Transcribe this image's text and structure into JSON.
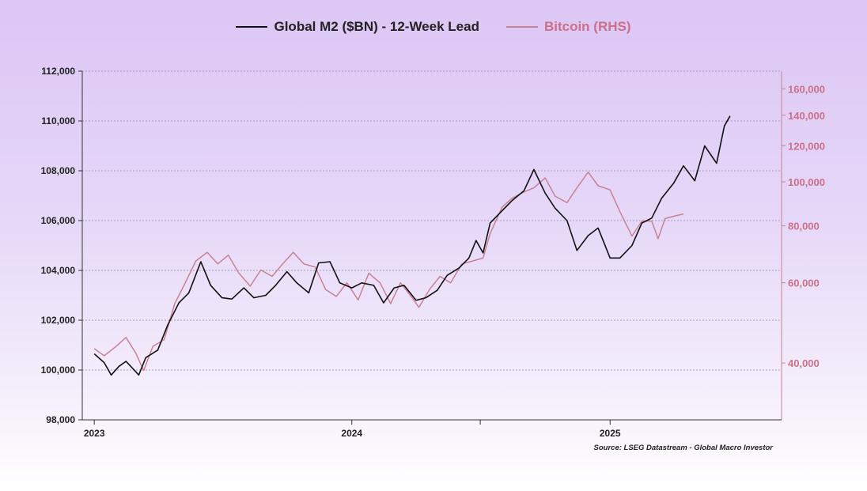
{
  "chart_data": {
    "type": "line",
    "title": "",
    "legend_placement": "top-center",
    "grid": true,
    "series": [
      {
        "name": "Global M2 ($BN) - 12-Week Lead",
        "axis": "left",
        "color": "#111111",
        "points": [
          [
            "2023-01-01",
            100650
          ],
          [
            "2023-01-15",
            100300
          ],
          [
            "2023-01-25",
            99800
          ],
          [
            "2023-02-05",
            100150
          ],
          [
            "2023-02-15",
            100350
          ],
          [
            "2023-02-25",
            100050
          ],
          [
            "2023-03-05",
            99800
          ],
          [
            "2023-03-15",
            100500
          ],
          [
            "2023-04-01",
            100800
          ],
          [
            "2023-04-15",
            101800
          ],
          [
            "2023-05-01",
            102700
          ],
          [
            "2023-05-15",
            103100
          ],
          [
            "2023-06-01",
            104350
          ],
          [
            "2023-06-15",
            103400
          ],
          [
            "2023-07-01",
            102900
          ],
          [
            "2023-07-15",
            102850
          ],
          [
            "2023-08-01",
            103300
          ],
          [
            "2023-08-15",
            102900
          ],
          [
            "2023-09-01",
            103000
          ],
          [
            "2023-09-15",
            103400
          ],
          [
            "2023-10-01",
            103950
          ],
          [
            "2023-10-15",
            103500
          ],
          [
            "2023-11-01",
            103100
          ],
          [
            "2023-11-15",
            104300
          ],
          [
            "2023-12-01",
            104350
          ],
          [
            "2023-12-15",
            103500
          ],
          [
            "2024-01-01",
            103300
          ],
          [
            "2024-01-15",
            103500
          ],
          [
            "2024-02-01",
            103400
          ],
          [
            "2024-02-15",
            102700
          ],
          [
            "2024-03-01",
            103300
          ],
          [
            "2024-03-15",
            103400
          ],
          [
            "2024-04-01",
            102800
          ],
          [
            "2024-04-15",
            102900
          ],
          [
            "2024-05-01",
            103200
          ],
          [
            "2024-05-15",
            103800
          ],
          [
            "2024-06-01",
            104100
          ],
          [
            "2024-06-15",
            104500
          ],
          [
            "2024-06-25",
            105200
          ],
          [
            "2024-07-05",
            104700
          ],
          [
            "2024-07-15",
            105900
          ],
          [
            "2024-08-01",
            106400
          ],
          [
            "2024-08-15",
            106800
          ],
          [
            "2024-09-01",
            107200
          ],
          [
            "2024-09-15",
            108050
          ],
          [
            "2024-10-01",
            107100
          ],
          [
            "2024-10-15",
            106500
          ],
          [
            "2024-11-01",
            106000
          ],
          [
            "2024-11-15",
            104800
          ],
          [
            "2024-12-01",
            105400
          ],
          [
            "2024-12-15",
            105700
          ],
          [
            "2025-01-01",
            104500
          ],
          [
            "2025-01-15",
            104500
          ],
          [
            "2025-02-01",
            105000
          ],
          [
            "2025-02-15",
            105900
          ],
          [
            "2025-03-01",
            106100
          ],
          [
            "2025-03-15",
            106900
          ],
          [
            "2025-04-01",
            107500
          ],
          [
            "2025-04-15",
            108200
          ],
          [
            "2025-05-01",
            107600
          ],
          [
            "2025-05-15",
            109000
          ],
          [
            "2025-06-01",
            108300
          ],
          [
            "2025-06-12",
            109800
          ],
          [
            "2025-06-20",
            110200
          ]
        ]
      },
      {
        "name": "Bitcoin (RHS)",
        "axis": "right",
        "color": "#c98194",
        "points": [
          [
            "2023-01-01",
            43000
          ],
          [
            "2023-01-15",
            41500
          ],
          [
            "2023-02-01",
            43500
          ],
          [
            "2023-02-15",
            45500
          ],
          [
            "2023-03-01",
            42000
          ],
          [
            "2023-03-12",
            38500
          ],
          [
            "2023-03-25",
            43500
          ],
          [
            "2023-04-10",
            45000
          ],
          [
            "2023-04-25",
            54000
          ],
          [
            "2023-05-10",
            60000
          ],
          [
            "2023-05-25",
            67000
          ],
          [
            "2023-06-10",
            70000
          ],
          [
            "2023-06-25",
            66000
          ],
          [
            "2023-07-10",
            69000
          ],
          [
            "2023-07-25",
            63000
          ],
          [
            "2023-08-10",
            59000
          ],
          [
            "2023-08-25",
            64000
          ],
          [
            "2023-09-10",
            62000
          ],
          [
            "2023-09-25",
            66000
          ],
          [
            "2023-10-10",
            70000
          ],
          [
            "2023-10-25",
            66000
          ],
          [
            "2023-11-10",
            65000
          ],
          [
            "2023-11-25",
            58000
          ],
          [
            "2023-12-10",
            56000
          ],
          [
            "2023-12-25",
            60000
          ],
          [
            "2024-01-10",
            55000
          ],
          [
            "2024-01-25",
            63000
          ],
          [
            "2024-02-10",
            60000
          ],
          [
            "2024-02-25",
            54000
          ],
          [
            "2024-03-10",
            60000
          ],
          [
            "2024-03-25",
            56000
          ],
          [
            "2024-04-05",
            53000
          ],
          [
            "2024-04-20",
            58000
          ],
          [
            "2024-05-05",
            62000
          ],
          [
            "2024-05-20",
            60000
          ],
          [
            "2024-06-05",
            66000
          ],
          [
            "2024-06-20",
            67000
          ],
          [
            "2024-07-05",
            68000
          ],
          [
            "2024-07-15",
            77000
          ],
          [
            "2024-08-01",
            88000
          ],
          [
            "2024-08-15",
            92000
          ],
          [
            "2024-09-01",
            95000
          ],
          [
            "2024-09-15",
            97000
          ],
          [
            "2024-10-01",
            102000
          ],
          [
            "2024-10-15",
            93000
          ],
          [
            "2024-11-01",
            90000
          ],
          [
            "2024-11-15",
            97000
          ],
          [
            "2024-12-01",
            105000
          ],
          [
            "2024-12-15",
            98000
          ],
          [
            "2025-01-01",
            96000
          ],
          [
            "2025-01-15",
            86000
          ],
          [
            "2025-02-01",
            76000
          ],
          [
            "2025-02-15",
            82000
          ],
          [
            "2025-03-01",
            82000
          ],
          [
            "2025-03-10",
            75000
          ],
          [
            "2025-03-20",
            83000
          ],
          [
            "2025-04-01",
            84000
          ],
          [
            "2025-04-15",
            85000
          ]
        ]
      }
    ],
    "y_left": {
      "ylim": [
        98000,
        112000
      ],
      "ticks": [
        {
          "value": 98000,
          "label": "98,000"
        },
        {
          "value": 100000,
          "label": "100,000"
        },
        {
          "value": 102000,
          "label": "102,000"
        },
        {
          "value": 104000,
          "label": "104,000"
        },
        {
          "value": 106000,
          "label": "106,000"
        },
        {
          "value": 108000,
          "label": "108,000"
        },
        {
          "value": 110000,
          "label": "110,000"
        },
        {
          "value": 112000,
          "label": "112,000"
        }
      ]
    },
    "y_right": {
      "scale": "log",
      "ylim": [
        30000,
        175000
      ],
      "ticks": [
        {
          "value": 40000,
          "label": "40,000"
        },
        {
          "value": 60000,
          "label": "60,000"
        },
        {
          "value": 80000,
          "label": "80,000"
        },
        {
          "value": 100000,
          "label": "100,000"
        },
        {
          "value": 120000,
          "label": "120,000"
        },
        {
          "value": 140000,
          "label": "140,000"
        },
        {
          "value": 160000,
          "label": "160,000"
        }
      ]
    },
    "x": {
      "xlim": [
        "2022-12-15",
        "2025-09-01"
      ],
      "ticks": [
        {
          "value": "2023-01-01",
          "label": "2023"
        },
        {
          "value": "2024-01-01",
          "label": "2024"
        },
        {
          "value": "2025-01-01",
          "label": "2025"
        }
      ],
      "minor_ticks": [
        "2024-07-01"
      ]
    },
    "source": "Source: LSEG Datastream - Global Macro Investor"
  }
}
